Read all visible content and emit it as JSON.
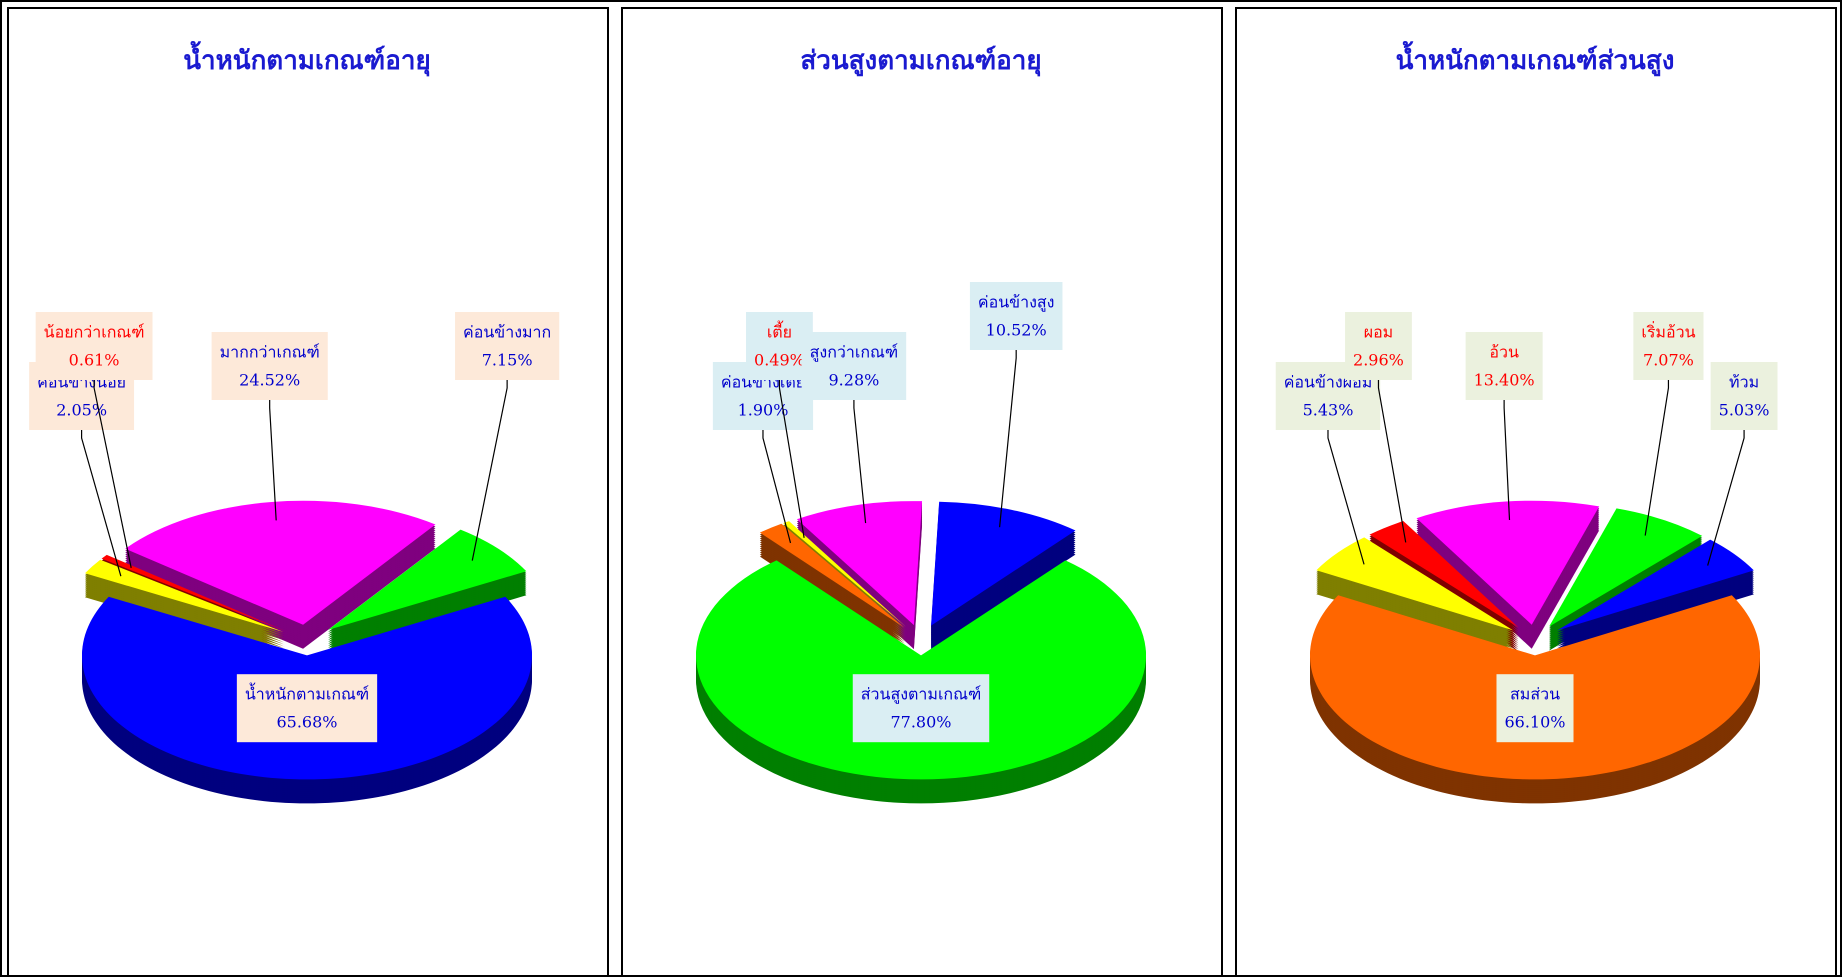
{
  "chart_data": [
    {
      "type": "pie",
      "title": "น้ำหนักตามเกณฑ์อายุ",
      "categories": [
        "น้ำหนักตามเกณฑ์",
        "ค่อนข้างน้อย",
        "น้อยกว่าเกณฑ์",
        "มากกว่าเกณฑ์",
        "ค่อนข้างมาก"
      ],
      "values": [
        65.68,
        2.05,
        0.61,
        24.52,
        7.15
      ],
      "value_labels": [
        "65.68%",
        "2.05%",
        "0.61%",
        "24.52%",
        "7.15%"
      ],
      "colors": [
        "#0000ff",
        "#ffff00",
        "#ff0000",
        "#ff00ff",
        "#00ff00"
      ],
      "label_colors": [
        "#0000cc",
        "#0000cc",
        "#ff0000",
        "#0000cc",
        "#0000cc"
      ],
      "label_background": "#fde9d9"
    },
    {
      "type": "pie",
      "title": "ส่วนสูงตามเกณฑ์อายุ",
      "categories": [
        "ส่วนสูงตามเกณฑ์",
        "ค่อนข้างเตี้ย",
        "เตี้ย",
        "สูงกว่าเกณฑ์",
        "ค่อนข้างสูง"
      ],
      "values": [
        77.8,
        1.9,
        0.49,
        9.28,
        10.52
      ],
      "value_labels": [
        "77.80%",
        "1.90%",
        "0.49%",
        "9.28%",
        "10.52%"
      ],
      "colors": [
        "#00ff00",
        "#ff6600",
        "#ffff00",
        "#ff00ff",
        "#0000ff"
      ],
      "label_colors": [
        "#0000cc",
        "#0000cc",
        "#ff0000",
        "#0000cc",
        "#0000cc"
      ],
      "label_background": "#daeef3"
    },
    {
      "type": "pie",
      "title": "น้ำหนักตามเกณฑ์ส่วนสูง",
      "categories": [
        "สมส่วน",
        "ค่อนข้างผอม",
        "ผอม",
        "อ้วน",
        "เริ่มอ้วน",
        "ท้วม"
      ],
      "values": [
        66.1,
        5.43,
        2.96,
        13.4,
        7.07,
        5.03
      ],
      "value_labels": [
        "66.10%",
        "5.43%",
        "2.96%",
        "13.40%",
        "7.07%",
        "5.03%"
      ],
      "colors": [
        "#ff6600",
        "#ffff00",
        "#ff0000",
        "#ff00ff",
        "#00ff00",
        "#0000ff"
      ],
      "label_colors": [
        "#0000cc",
        "#0000cc",
        "#ff0000",
        "#ff0000",
        "#ff0000",
        "#0000cc"
      ],
      "label_background": "#ebf1de"
    }
  ]
}
